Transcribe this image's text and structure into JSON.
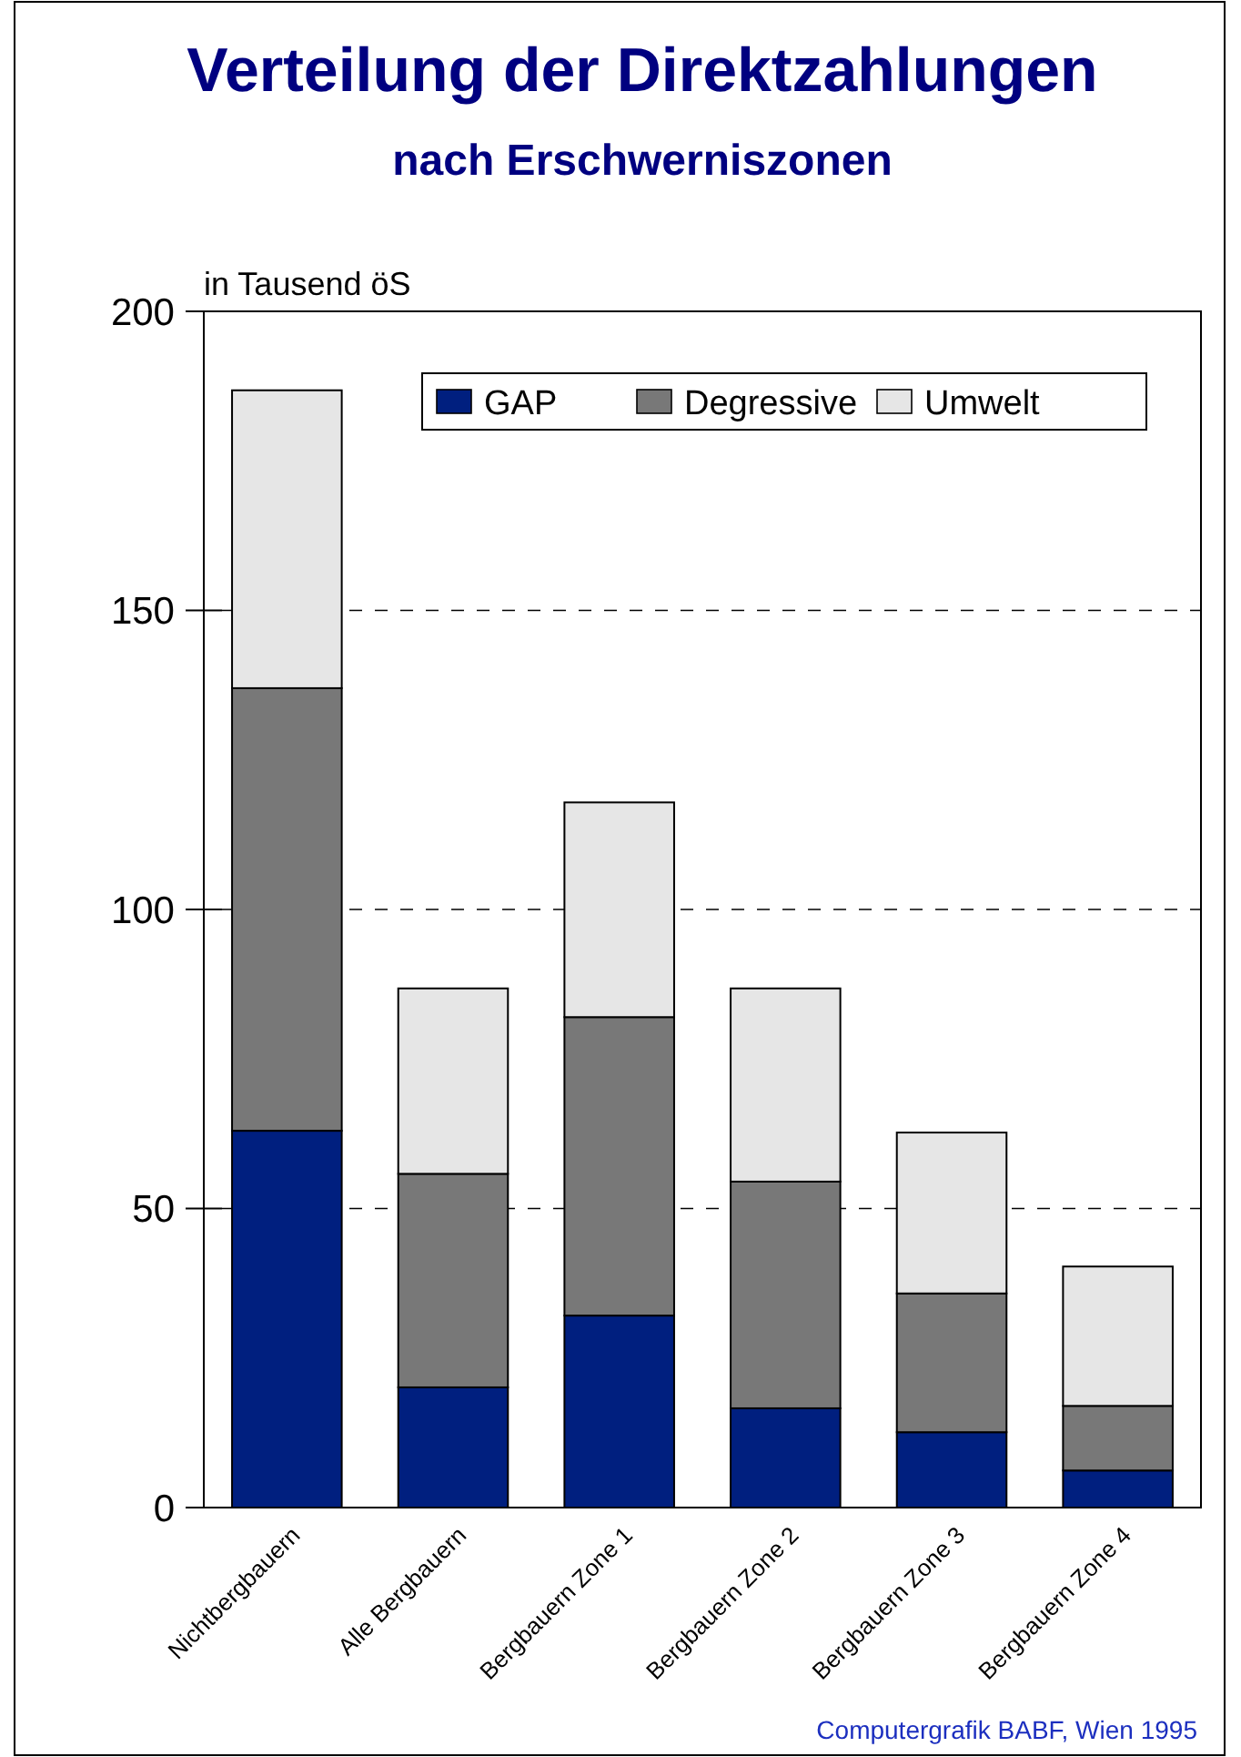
{
  "chart_data": {
    "type": "bar",
    "title": "Verteilung der Direktzahlungen",
    "subtitle": "nach Erschwerniszonen",
    "ylabel": "in Tausend öS",
    "categories": [
      "Nichtbergbauern",
      "Alle Bergbauern",
      "Bergbauern Zone 1",
      "Bergbauern Zone 2",
      "Bergbauern Zone 3",
      "Bergbauern Zone 4"
    ],
    "series": [
      {
        "name": "GAP",
        "color": "#001f7f",
        "values": [
          63,
          20.1,
          32.1,
          16.6,
          12.6,
          6.2
        ]
      },
      {
        "name": "Degressive",
        "color": "#787878",
        "values": [
          74,
          35.7,
          49.9,
          37.9,
          23.2,
          10.8
        ]
      },
      {
        "name": "Umwelt",
        "color": "#e6e6e6",
        "values": [
          49.8,
          31,
          35.9,
          32.3,
          26.9,
          23.3
        ]
      }
    ],
    "stacked": true,
    "ylim": [
      0,
      200
    ],
    "yticks": [
      0,
      50,
      100,
      150,
      200
    ],
    "grid": "y",
    "legend": "top right",
    "annotations": [
      "Computergrafik BABF, Wien 1995"
    ]
  }
}
